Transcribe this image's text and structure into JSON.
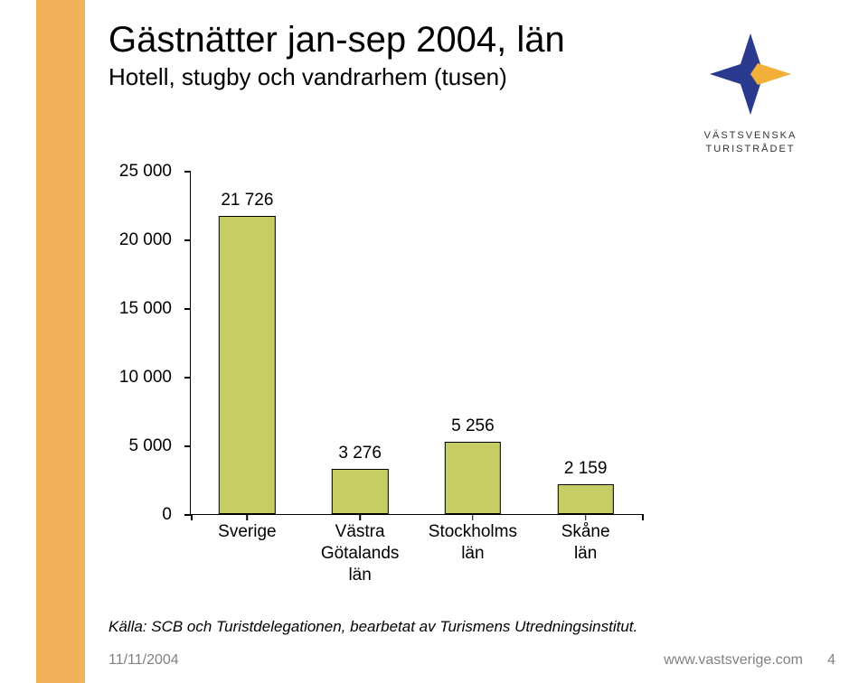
{
  "sidebar": {
    "color": "#f2b15b"
  },
  "title": {
    "text": "Gästnätter jan-sep 2004, län",
    "fontsize": 40,
    "color": "#000000"
  },
  "subtitle": {
    "text": "Hotell, stugby och vandrarhem (tusen)",
    "fontsize": 26,
    "color": "#000000"
  },
  "logo": {
    "line1": "VÄSTSVENSKA",
    "line2": "TURISTRÅDET",
    "caption_fontsize": 11,
    "star_blue": "#2a3a8f",
    "star_yellow": "#f2b03a"
  },
  "chart": {
    "type": "bar",
    "categories": [
      "Sverige",
      "Västra\nGötalands län",
      "Stockholms län",
      "Skåne län"
    ],
    "values": [
      21726,
      3276,
      5256,
      2159
    ],
    "value_labels": [
      "21 726",
      "3 276",
      "5 256",
      "2 159"
    ],
    "bar_color": "#c7cd65",
    "bar_border": "#000000",
    "bar_width_pct": 50,
    "ylim": [
      0,
      25000
    ],
    "yticks": [
      0,
      5000,
      10000,
      15000,
      20000,
      25000
    ],
    "ytick_labels": [
      "0",
      "5 000",
      "10 000",
      "15 000",
      "20 000",
      "25 000"
    ],
    "axis_fontsize": 19,
    "value_fontsize": 19,
    "xlabel_fontsize": 19,
    "axis_color": "#000000"
  },
  "source": {
    "text": "Källa: SCB och Turistdelegationen, bearbetat av Turismens Utredningsinstitut.",
    "fontsize": 17
  },
  "footer": {
    "date": "11/11/2004",
    "url": "www.vastsverige.com",
    "page": "4",
    "fontsize": 16,
    "color": "#808080"
  }
}
